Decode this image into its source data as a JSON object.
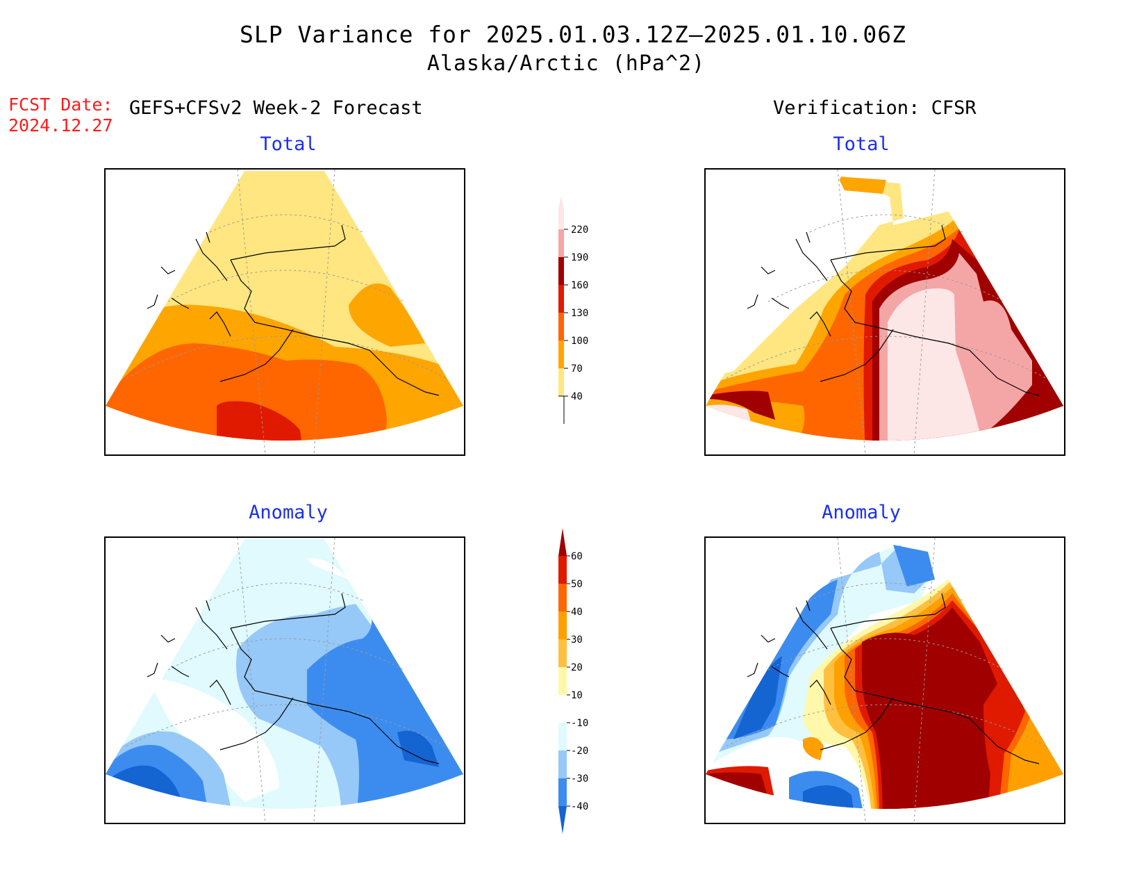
{
  "title": {
    "line1": "SLP Variance for 2025.01.03.12Z–2025.01.10.06Z",
    "line2": "Alaska/Arctic (hPa^2)"
  },
  "fcst": {
    "label": "FCST Date:",
    "date": "2024.12.27"
  },
  "headers": {
    "left": "GEFS+CFSv2 Week-2 Forecast",
    "right": "Verification: CFSR"
  },
  "panels": {
    "total_left": "Total",
    "total_right": "Total",
    "anom_left": "Anomaly",
    "anom_right": "Anomaly"
  },
  "colorbars": {
    "total": {
      "labels": [
        "40",
        "70",
        "100",
        "130",
        "160",
        "190",
        "220"
      ],
      "colors": [
        "#ffe680",
        "#ffa500",
        "#ff6600",
        "#e01a00",
        "#a00000",
        "#f4a6a6",
        "#fde6e6"
      ]
    },
    "anomaly": {
      "labels": [
        "-40",
        "-30",
        "-20",
        "-10",
        "10",
        "20",
        "30",
        "40",
        "50",
        "60"
      ],
      "colors": [
        "#1464d2",
        "#3c8cf0",
        "#96c8f8",
        "#e0fafe",
        "#ffffff",
        "#fff8aa",
        "#ffc040",
        "#ffa000",
        "#ff6600",
        "#e01a00",
        "#a00000"
      ]
    }
  }
}
